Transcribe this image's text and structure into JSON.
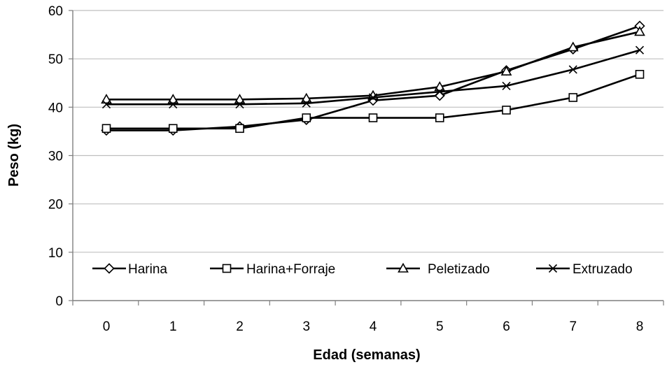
{
  "chart_data": {
    "type": "line",
    "title": "",
    "xlabel": "Edad (semanas)",
    "ylabel": "Peso (kg)",
    "x": [
      0,
      1,
      2,
      3,
      4,
      5,
      6,
      7,
      8
    ],
    "x_tick_labels": [
      "0",
      "1",
      "2",
      "3",
      "4",
      "5",
      "6",
      "7",
      "8"
    ],
    "ylim": [
      0,
      60
    ],
    "y_ticks": [
      0,
      10,
      20,
      30,
      40,
      50,
      60
    ],
    "y_tick_labels": [
      "0",
      "10",
      "20",
      "30",
      "40",
      "50",
      "60"
    ],
    "grid": "horizontal",
    "legend_position": "bottom",
    "series": [
      {
        "name": "Harina",
        "marker": "diamond",
        "values": [
          35.2,
          35.2,
          36.0,
          37.4,
          41.4,
          42.4,
          47.6,
          52.0,
          56.8
        ]
      },
      {
        "name": "Harina+Forraje",
        "marker": "square",
        "values": [
          35.6,
          35.6,
          35.6,
          37.8,
          37.8,
          37.8,
          39.4,
          42.0,
          46.8
        ]
      },
      {
        "name": "Peletizado",
        "marker": "triangle",
        "values": [
          41.6,
          41.6,
          41.6,
          41.8,
          42.4,
          44.2,
          47.4,
          52.4,
          55.6
        ]
      },
      {
        "name": "Extruzado",
        "marker": "x",
        "values": [
          40.6,
          40.6,
          40.6,
          40.8,
          42.0,
          43.2,
          44.4,
          47.8,
          51.8
        ]
      }
    ],
    "colors": {
      "line": "#000000",
      "grid": "#bfbfbf",
      "axis": "#7f7f7f"
    }
  }
}
